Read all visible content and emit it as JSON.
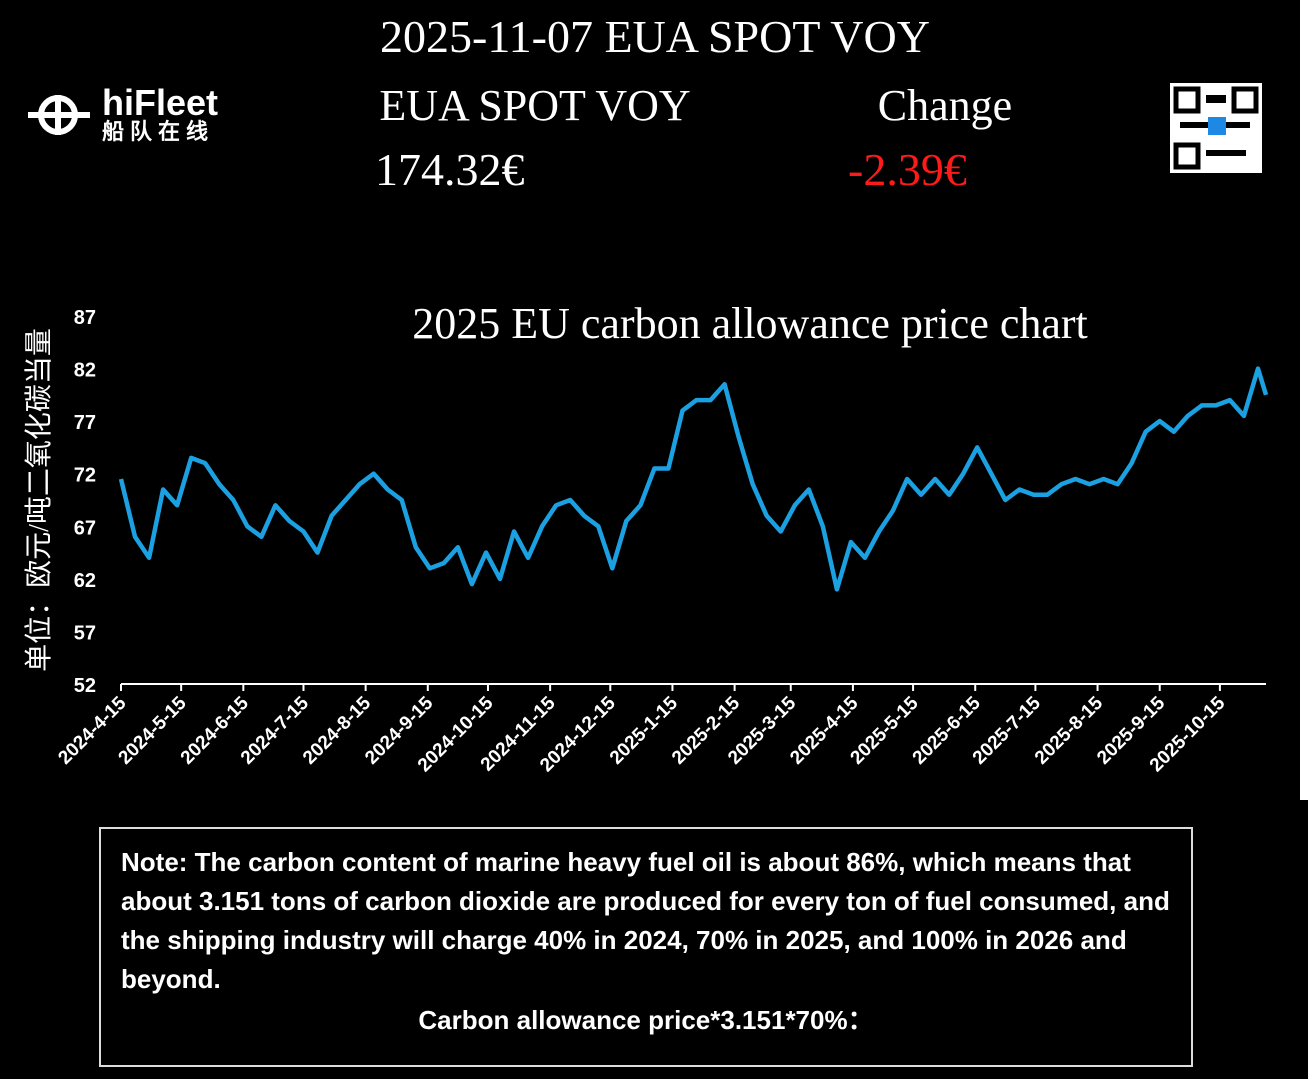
{
  "header": {
    "title": "2025-11-07 EUA SPOT VOY",
    "price_label": "EUA SPOT VOY",
    "change_label": "Change",
    "price": "174.32€",
    "change": "-2.39€",
    "logo_name": "hiFleet",
    "logo_sub": "船队在线"
  },
  "chart_data": {
    "type": "line",
    "title": "2025 EU carbon allowance price chart",
    "y_label": "单位：欧元/吨二氧化碳当量",
    "x": [
      "2024-4-15",
      "2024-4-22",
      "2024-4-29",
      "2024-5-6",
      "2024-5-13",
      "2024-5-20",
      "2024-5-27",
      "2024-6-3",
      "2024-6-10",
      "2024-6-17",
      "2024-6-24",
      "2024-7-1",
      "2024-7-8",
      "2024-7-15",
      "2024-7-22",
      "2024-7-29",
      "2024-8-5",
      "2024-8-12",
      "2024-8-19",
      "2024-8-26",
      "2024-9-2",
      "2024-9-9",
      "2024-9-16",
      "2024-9-23",
      "2024-9-30",
      "2024-10-7",
      "2024-10-14",
      "2024-10-21",
      "2024-10-28",
      "2024-11-4",
      "2024-11-11",
      "2024-11-18",
      "2024-11-25",
      "2024-12-2",
      "2024-12-9",
      "2024-12-16",
      "2024-12-23",
      "2024-12-30",
      "2025-1-6",
      "2025-1-13",
      "2025-1-20",
      "2025-1-27",
      "2025-2-3",
      "2025-2-10",
      "2025-2-17",
      "2025-2-24",
      "2025-3-3",
      "2025-3-10",
      "2025-3-17",
      "2025-3-24",
      "2025-3-31",
      "2025-4-7",
      "2025-4-14",
      "2025-4-21",
      "2025-4-28",
      "2025-5-5",
      "2025-5-12",
      "2025-5-19",
      "2025-5-26",
      "2025-6-2",
      "2025-6-9",
      "2025-6-16",
      "2025-6-23",
      "2025-6-30",
      "2025-7-7",
      "2025-7-14",
      "2025-7-21",
      "2025-7-28",
      "2025-8-4",
      "2025-8-11",
      "2025-8-18",
      "2025-8-25",
      "2025-9-1",
      "2025-9-8",
      "2025-9-15",
      "2025-9-22",
      "2025-9-29",
      "2025-10-6",
      "2025-10-13",
      "2025-10-20",
      "2025-10-27",
      "2025-11-3",
      "2025-11-7"
    ],
    "series": [
      {
        "name": "EUA SPOT VOY",
        "color": "#1ba1e2",
        "values": [
          71.5,
          66,
          64,
          70.5,
          69,
          73.5,
          73,
          71,
          69.5,
          67,
          66,
          69,
          67.5,
          66.5,
          64.5,
          68,
          69.5,
          71,
          72,
          70.5,
          69.5,
          65,
          63,
          63.5,
          65,
          61.5,
          64.5,
          62,
          66.5,
          64,
          67,
          69,
          69.5,
          68,
          67,
          63,
          67.5,
          69,
          72.5,
          72.5,
          78,
          79,
          79,
          80.5,
          75.5,
          71,
          68,
          66.5,
          69,
          70.5,
          67,
          61,
          65.5,
          64,
          66.5,
          68.5,
          71.5,
          70,
          71.5,
          70,
          72,
          74.5,
          72,
          69.5,
          70.5,
          70,
          70,
          71,
          71.5,
          71,
          71.5,
          71,
          73,
          76,
          77,
          76,
          77.5,
          78.5,
          78.5,
          79,
          77.5,
          82,
          79.5
        ]
      }
    ],
    "xlim": [
      "2024-4-15",
      "2025-11-7"
    ],
    "xticks": [
      "2024-4-15",
      "2024-5-15",
      "2024-6-15",
      "2024-7-15",
      "2024-8-15",
      "2024-9-15",
      "2024-10-15",
      "2024-11-15",
      "2024-12-15",
      "2025-1-15",
      "2025-2-15",
      "2025-3-15",
      "2025-4-15",
      "2025-5-15",
      "2025-6-15",
      "2025-7-15",
      "2025-8-15",
      "2025-9-15",
      "2025-10-15"
    ],
    "ylim": [
      52,
      87
    ],
    "yticks": [
      52,
      57,
      62,
      67,
      72,
      77,
      82,
      87
    ],
    "grid": false
  },
  "note": {
    "text": "Note: The carbon content of marine heavy fuel oil is about 86%, which means that about 3.151 tons of carbon dioxide are produced for every ton of fuel consumed, and the shipping industry will charge 40% in 2024, 70% in 2025, and 100% in 2026 and beyond.",
    "formula": "Carbon allowance price*3.151*70%："
  }
}
